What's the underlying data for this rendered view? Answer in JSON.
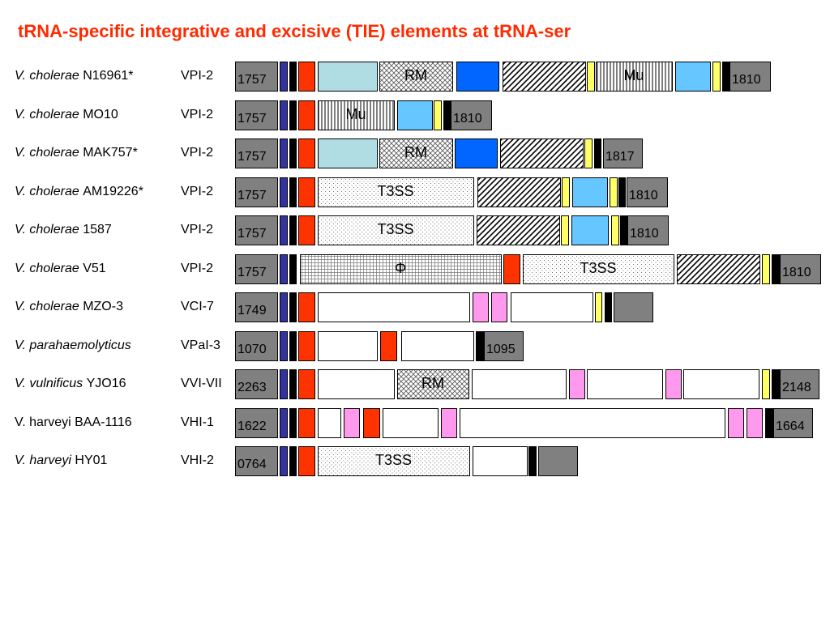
{
  "title": "tRNA-specific integrative and excisive (TIE) elements at tRNA-ser",
  "colors": {
    "title": "#ff2a00",
    "gray": "#808080",
    "navy": "#3333a0",
    "black": "#000000",
    "red": "#ff3300",
    "lightblue": "#b0dde4",
    "blue": "#0066ff",
    "skyblue": "#66c6ff",
    "yellow": "#ffff66",
    "pink": "#ff99ee",
    "white": "#ffffff"
  },
  "rows": [
    {
      "strain_italic": "V. cholerae",
      "strain_rest": " N16961*",
      "element": "VPI-2",
      "segments": [
        {
          "t": "gray",
          "x": 290,
          "w": 52,
          "label": "1757"
        },
        {
          "t": "navy",
          "x": 345,
          "w": 9
        },
        {
          "t": "black",
          "x": 357,
          "w": 8
        },
        {
          "t": "red",
          "x": 368,
          "w": 20
        },
        {
          "t": "lightblue",
          "x": 392,
          "w": 73
        },
        {
          "t": "cross",
          "x": 468,
          "w": 90,
          "label": "RM"
        },
        {
          "t": "blue",
          "x": 563,
          "w": 52
        },
        {
          "t": "diag",
          "x": 620,
          "w": 102
        },
        {
          "t": "yellow",
          "x": 724,
          "w": 9
        },
        {
          "t": "vert",
          "x": 735,
          "w": 94,
          "label": "Mu"
        },
        {
          "t": "skyblue",
          "x": 833,
          "w": 43
        },
        {
          "t": "yellow",
          "x": 879,
          "w": 9
        },
        {
          "t": "black",
          "x": 891,
          "w": 8
        },
        {
          "t": "gray",
          "x": 900,
          "w": 50,
          "label": "1810"
        }
      ]
    },
    {
      "strain_italic": "V. cholerae",
      "strain_rest": " MO10",
      "element": "VPI-2",
      "segments": [
        {
          "t": "gray",
          "x": 290,
          "w": 52,
          "label": "1757"
        },
        {
          "t": "navy",
          "x": 345,
          "w": 9
        },
        {
          "t": "black",
          "x": 357,
          "w": 8
        },
        {
          "t": "red",
          "x": 368,
          "w": 20
        },
        {
          "t": "vert",
          "x": 392,
          "w": 94,
          "label": "Mu"
        },
        {
          "t": "skyblue",
          "x": 490,
          "w": 43
        },
        {
          "t": "yellow",
          "x": 535,
          "w": 9
        },
        {
          "t": "black",
          "x": 547,
          "w": 8
        },
        {
          "t": "gray",
          "x": 556,
          "w": 50,
          "label": "1810"
        }
      ]
    },
    {
      "strain_italic": "V. cholerae",
      "strain_rest": " MAK757*",
      "element": "VPI-2",
      "segments": [
        {
          "t": "gray",
          "x": 290,
          "w": 52,
          "label": "1757"
        },
        {
          "t": "navy",
          "x": 345,
          "w": 9
        },
        {
          "t": "black",
          "x": 357,
          "w": 8
        },
        {
          "t": "red",
          "x": 368,
          "w": 20
        },
        {
          "t": "lightblue",
          "x": 392,
          "w": 73
        },
        {
          "t": "cross",
          "x": 468,
          "w": 90,
          "label": "RM"
        },
        {
          "t": "blue",
          "x": 561,
          "w": 52
        },
        {
          "t": "diag",
          "x": 617,
          "w": 102
        },
        {
          "t": "yellow",
          "x": 721,
          "w": 9
        },
        {
          "t": "black",
          "x": 733,
          "w": 8
        },
        {
          "t": "gray",
          "x": 744,
          "w": 48,
          "label": "1817"
        }
      ]
    },
    {
      "strain_italic": "V. cholerae",
      "strain_rest": " AM19226*",
      "element": "VPI-2",
      "segments": [
        {
          "t": "gray",
          "x": 290,
          "w": 52,
          "label": "1757"
        },
        {
          "t": "navy",
          "x": 345,
          "w": 9
        },
        {
          "t": "black",
          "x": 357,
          "w": 8
        },
        {
          "t": "red",
          "x": 368,
          "w": 20
        },
        {
          "t": "dots",
          "x": 392,
          "w": 192,
          "label": "T3SS"
        },
        {
          "t": "diag",
          "x": 589,
          "w": 102
        },
        {
          "t": "yellow",
          "x": 693,
          "w": 9
        },
        {
          "t": "skyblue",
          "x": 706,
          "w": 43
        },
        {
          "t": "yellow",
          "x": 752,
          "w": 9
        },
        {
          "t": "black",
          "x": 763,
          "w": 8
        },
        {
          "t": "gray",
          "x": 773,
          "w": 50,
          "label": "1810"
        }
      ]
    },
    {
      "strain_italic": "V. cholerae",
      "strain_rest": " 1587",
      "element": "VPI-2",
      "segments": [
        {
          "t": "gray",
          "x": 290,
          "w": 52,
          "label": "1757"
        },
        {
          "t": "navy",
          "x": 345,
          "w": 9
        },
        {
          "t": "black",
          "x": 357,
          "w": 8
        },
        {
          "t": "red",
          "x": 368,
          "w": 20
        },
        {
          "t": "dots",
          "x": 392,
          "w": 192,
          "label": "T3SS"
        },
        {
          "t": "diag",
          "x": 588,
          "w": 102
        },
        {
          "t": "yellow",
          "x": 692,
          "w": 9
        },
        {
          "t": "skyblue",
          "x": 705,
          "w": 45
        },
        {
          "t": "yellow",
          "x": 754,
          "w": 9
        },
        {
          "t": "black",
          "x": 765,
          "w": 8
        },
        {
          "t": "gray",
          "x": 774,
          "w": 50,
          "label": "1810"
        }
      ]
    },
    {
      "strain_italic": "V. cholerae",
      "strain_rest": " V51",
      "element": "VPI-2",
      "segments": [
        {
          "t": "gray",
          "x": 290,
          "w": 52,
          "label": "1757"
        },
        {
          "t": "navy",
          "x": 345,
          "w": 9
        },
        {
          "t": "black",
          "x": 357,
          "w": 8
        },
        {
          "t": "grid",
          "x": 370,
          "w": 248,
          "label": "Φ"
        },
        {
          "t": "red",
          "x": 621,
          "w": 20
        },
        {
          "t": "dots",
          "x": 645,
          "w": 186,
          "label": "T3SS"
        },
        {
          "t": "diag",
          "x": 835,
          "w": 102
        },
        {
          "t": "yellow",
          "x": 940,
          "w": 9
        },
        {
          "t": "black",
          "x": 952,
          "w": 9
        },
        {
          "t": "gray",
          "x": 962,
          "w": 50,
          "label": "1810"
        }
      ]
    },
    {
      "strain_italic": "V. cholerae",
      "strain_rest": " MZO-3",
      "element": "VCI-7",
      "segments": [
        {
          "t": "gray",
          "x": 290,
          "w": 52,
          "label": "1749"
        },
        {
          "t": "navy",
          "x": 345,
          "w": 9
        },
        {
          "t": "black",
          "x": 357,
          "w": 8
        },
        {
          "t": "red",
          "x": 368,
          "w": 20
        },
        {
          "t": "white",
          "x": 392,
          "w": 187
        },
        {
          "t": "pink",
          "x": 583,
          "w": 19
        },
        {
          "t": "pink",
          "x": 606,
          "w": 19
        },
        {
          "t": "white",
          "x": 630,
          "w": 101
        },
        {
          "t": "yellow",
          "x": 734,
          "w": 8
        },
        {
          "t": "black",
          "x": 746,
          "w": 8
        },
        {
          "t": "gray",
          "x": 757,
          "w": 48
        }
      ]
    },
    {
      "strain_italic": "V. parahaemolyticus",
      "strain_rest": "",
      "element": "VPaI-3",
      "segments": [
        {
          "t": "gray",
          "x": 290,
          "w": 52,
          "label": "1070"
        },
        {
          "t": "navy",
          "x": 345,
          "w": 9
        },
        {
          "t": "black",
          "x": 357,
          "w": 8
        },
        {
          "t": "red",
          "x": 368,
          "w": 20
        },
        {
          "t": "white",
          "x": 392,
          "w": 73
        },
        {
          "t": "red",
          "x": 469,
          "w": 20
        },
        {
          "t": "white",
          "x": 495,
          "w": 89
        },
        {
          "t": "black",
          "x": 587,
          "w": 9
        },
        {
          "t": "gray",
          "x": 597,
          "w": 48,
          "label": "1095"
        }
      ]
    },
    {
      "strain_italic": "V. vulnificus",
      "strain_rest": " YJO16",
      "element": "VVI-VII",
      "segments": [
        {
          "t": "gray",
          "x": 290,
          "w": 52,
          "label": "2263"
        },
        {
          "t": "navy",
          "x": 345,
          "w": 9
        },
        {
          "t": "black",
          "x": 357,
          "w": 8
        },
        {
          "t": "red",
          "x": 368,
          "w": 20
        },
        {
          "t": "white",
          "x": 392,
          "w": 94
        },
        {
          "t": "cross",
          "x": 490,
          "w": 88,
          "label": "RM"
        },
        {
          "t": "white",
          "x": 582,
          "w": 116
        },
        {
          "t": "pink",
          "x": 702,
          "w": 19
        },
        {
          "t": "white",
          "x": 724,
          "w": 93
        },
        {
          "t": "pink",
          "x": 821,
          "w": 19
        },
        {
          "t": "white",
          "x": 843,
          "w": 93
        },
        {
          "t": "yellow",
          "x": 940,
          "w": 9
        },
        {
          "t": "black",
          "x": 952,
          "w": 9
        },
        {
          "t": "gray",
          "x": 962,
          "w": 48,
          "label": "2148"
        }
      ]
    },
    {
      "strain_italic": "",
      "strain_rest": "V. harveyi BAA-1116",
      "element": "VHI-1",
      "segments": [
        {
          "t": "gray",
          "x": 290,
          "w": 52,
          "label": "1622"
        },
        {
          "t": "navy",
          "x": 345,
          "w": 9
        },
        {
          "t": "black",
          "x": 357,
          "w": 8
        },
        {
          "t": "red",
          "x": 368,
          "w": 20
        },
        {
          "t": "white",
          "x": 392,
          "w": 28
        },
        {
          "t": "pink",
          "x": 424,
          "w": 19
        },
        {
          "t": "red",
          "x": 448,
          "w": 20
        },
        {
          "t": "white",
          "x": 472,
          "w": 68
        },
        {
          "t": "pink",
          "x": 544,
          "w": 19
        },
        {
          "t": "white",
          "x": 567,
          "w": 327
        },
        {
          "t": "pink",
          "x": 898,
          "w": 19
        },
        {
          "t": "pink",
          "x": 921,
          "w": 19
        },
        {
          "t": "black",
          "x": 944,
          "w": 9
        },
        {
          "t": "gray",
          "x": 954,
          "w": 48,
          "label": "1664"
        }
      ]
    },
    {
      "strain_italic": "V. harveyi",
      "strain_rest": " HY01",
      "element": "VHI-2",
      "segments": [
        {
          "t": "gray",
          "x": 290,
          "w": 52,
          "label": "0764"
        },
        {
          "t": "navy",
          "x": 345,
          "w": 9
        },
        {
          "t": "black",
          "x": 357,
          "w": 8
        },
        {
          "t": "red",
          "x": 368,
          "w": 20
        },
        {
          "t": "dots",
          "x": 392,
          "w": 187,
          "label": "T3SS"
        },
        {
          "t": "white",
          "x": 583,
          "w": 67
        },
        {
          "t": "black",
          "x": 652,
          "w": 9
        },
        {
          "t": "gray",
          "x": 664,
          "w": 48
        }
      ]
    }
  ]
}
